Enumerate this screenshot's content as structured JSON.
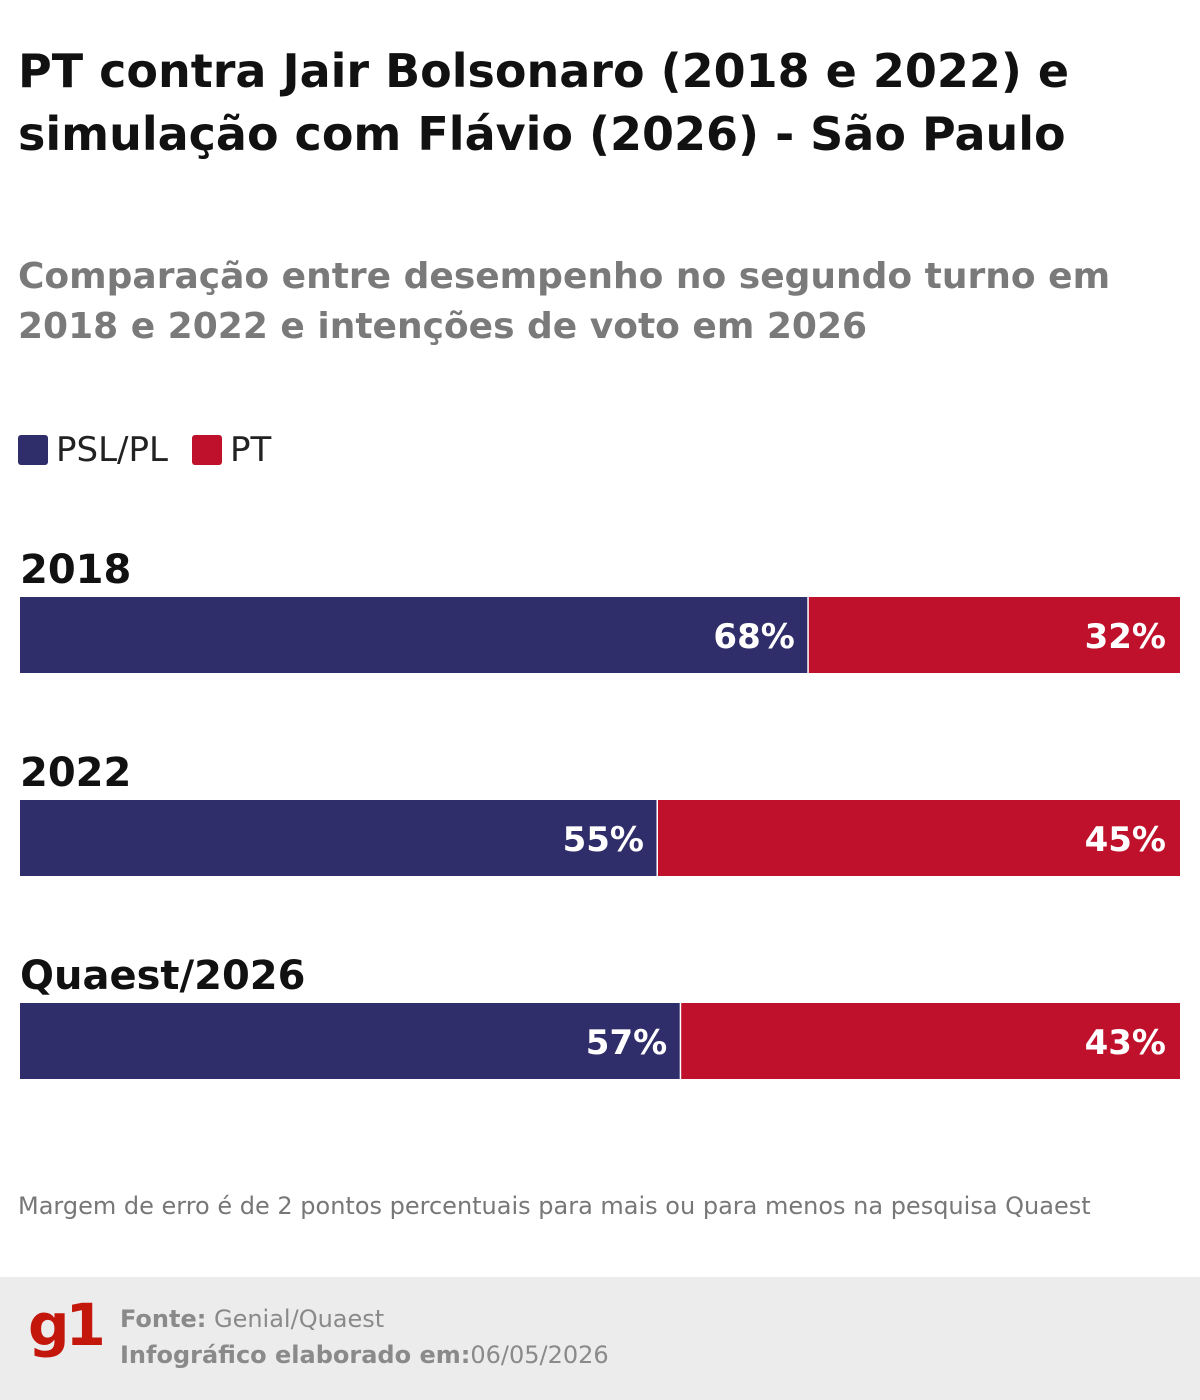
{
  "header": {
    "title": "PT contra Jair Bolsonaro (2018 e 2022) e simulação com Flávio (2026) - São Paulo",
    "subtitle": "Comparação entre desempenho no segundo turno em 2018 e 2022 e intenções de voto em 2026"
  },
  "legend": {
    "items": [
      {
        "label": "PSL/PL",
        "color": "#302e6a"
      },
      {
        "label": "PT",
        "color": "#c0112c"
      }
    ]
  },
  "chart_data": {
    "type": "bar",
    "orientation": "horizontal",
    "stacked": true,
    "categories": [
      "2018",
      "2022",
      "Quaest/2026"
    ],
    "series": [
      {
        "name": "PSL/PL",
        "color": "#302e6a",
        "values": [
          68,
          55,
          57
        ]
      },
      {
        "name": "PT",
        "color": "#c0112c",
        "values": [
          32,
          45,
          43
        ]
      }
    ],
    "value_suffix": "%",
    "xlim": [
      0,
      100
    ],
    "grid": false,
    "legend_position": "top-left"
  },
  "footnote": "Margem de erro é de 2 pontos percentuais para mais ou para menos na pesquisa Quaest",
  "footer": {
    "logo": "g1",
    "source_label": "Fonte:",
    "source_value": "Genial/Quaest",
    "date_label": "Infográfico elaborado em:",
    "date_value": "06/05/2026"
  }
}
